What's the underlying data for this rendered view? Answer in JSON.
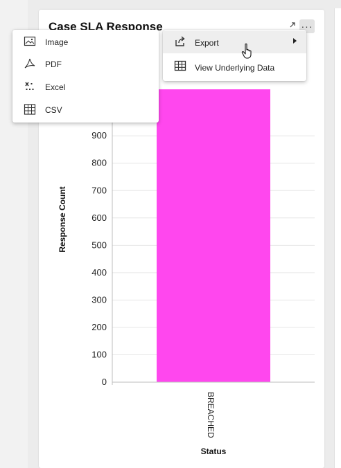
{
  "card": {
    "title": "Case SLA Response",
    "expand_icon": "external-expand-icon",
    "more_icon": "more-horizontal-icon",
    "more_label": "···"
  },
  "context_menu": {
    "items": [
      {
        "label": "Export",
        "icon": "export-icon",
        "has_submenu": true
      },
      {
        "label": "View Underlying Data",
        "icon": "table-grid-icon"
      }
    ]
  },
  "export_menu": {
    "items": [
      {
        "label": "Image",
        "icon": "image-icon"
      },
      {
        "label": "PDF",
        "icon": "pdf-icon"
      },
      {
        "label": "Excel",
        "icon": "excel-icon"
      },
      {
        "label": "CSV",
        "icon": "csv-icon"
      }
    ]
  },
  "colors": {
    "bar": "#ff47ee",
    "grid": "#e6e6e6",
    "axis": "#bdbdbd",
    "text": "#222222"
  },
  "chart_data": {
    "type": "bar",
    "title": "Case SLA Response",
    "xlabel": "Status",
    "ylabel": "Response Count",
    "categories": [
      "BREACHED"
    ],
    "values": [
      1070
    ],
    "ylim": [
      0,
      1070
    ],
    "yticks": [
      0,
      100,
      200,
      300,
      400,
      500,
      600,
      700,
      800,
      900
    ],
    "grid": true
  }
}
